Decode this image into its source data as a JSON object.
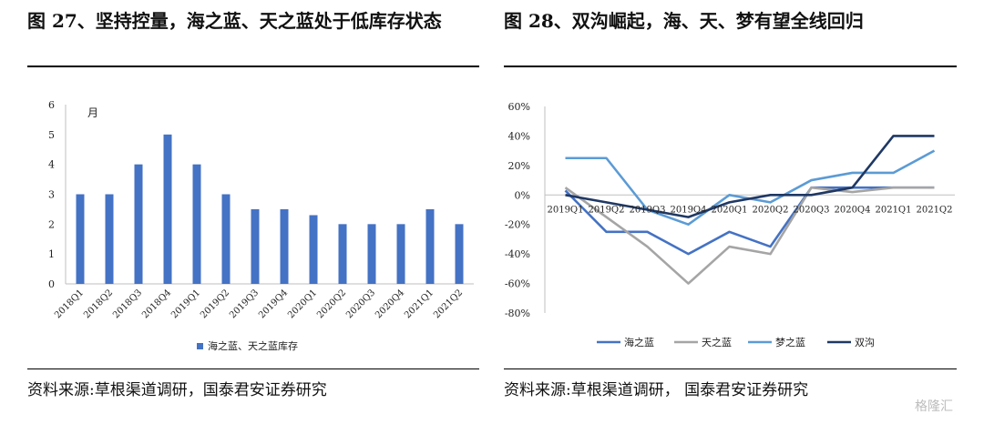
{
  "left": {
    "title": "图 27、坚持控量，海之蓝、天之蓝处于低库存状态",
    "source": "资料来源:草根渠道调研，国泰君安证券研究"
  },
  "right": {
    "title": "图 28、双沟崛起，海、天、梦有望全线回归",
    "source": "资料来源:草根渠道调研，   国泰君安证券研究"
  },
  "watermark": "格隆汇",
  "chart_data": [
    {
      "type": "bar",
      "unit_label": "月",
      "categories": [
        "2018Q1",
        "2018Q2",
        "2018Q3",
        "2018Q4",
        "2019Q1",
        "2019Q2",
        "2019Q3",
        "2019Q4",
        "2020Q1",
        "2020Q2",
        "2020Q3",
        "2020Q4",
        "2021Q1",
        "2021Q2"
      ],
      "series": [
        {
          "name": "海之蓝、天之蓝库存",
          "color": "#4472C4",
          "values": [
            3,
            3,
            4,
            5,
            4,
            3,
            2.5,
            2.5,
            2.3,
            2,
            2,
            2,
            2.5,
            2
          ]
        }
      ],
      "ylim": [
        0,
        6
      ],
      "yticks": [
        "0",
        "1",
        "2",
        "3",
        "4",
        "5",
        "6"
      ],
      "grid": false,
      "legend": "bottom"
    },
    {
      "type": "line",
      "categories": [
        "2019Q1",
        "2019Q2",
        "2019Q3",
        "2019Q4",
        "2020Q1",
        "2020Q2",
        "2020Q3",
        "2020Q4",
        "2021Q1",
        "2021Q2"
      ],
      "series": [
        {
          "name": "海之蓝",
          "color": "#4472C4",
          "values": [
            3,
            -25,
            -25,
            -40,
            -25,
            -35,
            5,
            5,
            5,
            5
          ]
        },
        {
          "name": "天之蓝",
          "color": "#A5A5A5",
          "values": [
            5,
            -15,
            -35,
            -60,
            -35,
            -40,
            5,
            2,
            5,
            5
          ]
        },
        {
          "name": "梦之蓝",
          "color": "#5B9BD5",
          "values": [
            25,
            25,
            -10,
            -20,
            0,
            -5,
            10,
            15,
            15,
            30
          ]
        },
        {
          "name": "双沟",
          "color": "#1F3864",
          "values": [
            0,
            -5,
            -10,
            -15,
            -5,
            0,
            0,
            5,
            40,
            40
          ]
        }
      ],
      "ylim": [
        -80,
        60
      ],
      "yticks": [
        "-80%",
        "-60%",
        "-40%",
        "-20%",
        "0%",
        "20%",
        "40%",
        "60%"
      ],
      "grid": false,
      "legend": "bottom"
    }
  ]
}
